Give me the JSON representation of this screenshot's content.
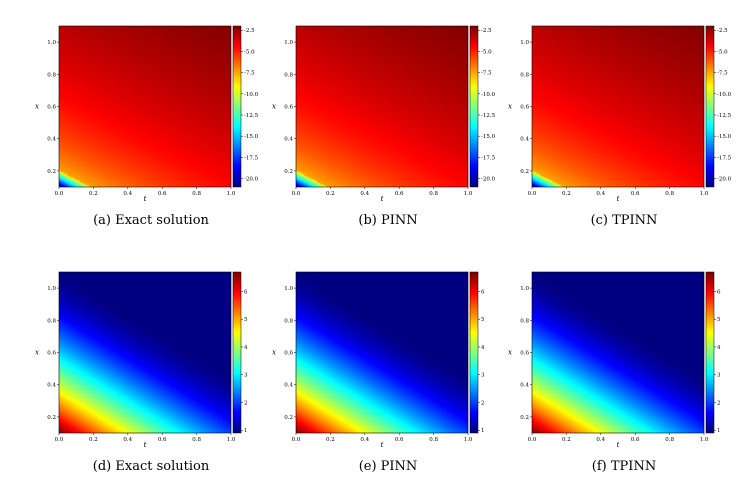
{
  "figure": {
    "panels": [
      {
        "id": "a",
        "row": "top",
        "caption": "(a)  Exact solution"
      },
      {
        "id": "b",
        "row": "top",
        "caption": "(b)  PINN"
      },
      {
        "id": "c",
        "row": "top",
        "caption": "(c)  TPINN"
      },
      {
        "id": "d",
        "row": "bottom",
        "caption": "(d)  Exact solution"
      },
      {
        "id": "e",
        "row": "bottom",
        "caption": "(e)  PINN"
      },
      {
        "id": "f",
        "row": "bottom",
        "caption": "(f)  TPINN"
      }
    ]
  },
  "chart_data": [
    {
      "type": "heatmap",
      "panel": "(a)",
      "title": "(a)  Exact solution",
      "xlabel": "t",
      "ylabel": "x",
      "xlim": [
        0.0,
        1.0
      ],
      "ylim": [
        0.1,
        1.1
      ],
      "xticks": [
        "0.0",
        "0.2",
        "0.4",
        "0.6",
        "0.8",
        "1.0"
      ],
      "yticks": [
        "0.2",
        "0.4",
        "0.6",
        "0.8",
        "1.0"
      ],
      "colormap": "jet",
      "colorbar": {
        "range": [
          -21,
          -2
        ],
        "ticks": [
          "-2.5",
          "-5.0",
          "-7.5",
          "-10.0",
          "-12.5",
          "-15.0",
          "-17.5",
          "-20.0"
        ]
      }
    },
    {
      "type": "heatmap",
      "panel": "(b)",
      "title": "(b)  PINN",
      "xlabel": "t",
      "ylabel": "x",
      "xlim": [
        0.0,
        1.0
      ],
      "ylim": [
        0.1,
        1.1
      ],
      "xticks": [
        "0.0",
        "0.2",
        "0.4",
        "0.6",
        "0.8",
        "1.0"
      ],
      "yticks": [
        "0.2",
        "0.4",
        "0.6",
        "0.8",
        "1.0"
      ],
      "colormap": "jet",
      "colorbar": {
        "range": [
          -21,
          -2
        ],
        "ticks": [
          "-2.5",
          "-5.0",
          "-7.5",
          "-10.0",
          "-12.5",
          "-15.0",
          "-17.5",
          "-20.0"
        ]
      }
    },
    {
      "type": "heatmap",
      "panel": "(c)",
      "title": "(c)  TPINN",
      "xlabel": "t",
      "ylabel": "x",
      "xlim": [
        0.0,
        1.0
      ],
      "ylim": [
        0.1,
        1.1
      ],
      "xticks": [
        "0.0",
        "0.2",
        "0.4",
        "0.6",
        "0.8",
        "1.0"
      ],
      "yticks": [
        "0.2",
        "0.4",
        "0.6",
        "0.8",
        "1.0"
      ],
      "colormap": "jet",
      "colorbar": {
        "range": [
          -21,
          -2
        ],
        "ticks": [
          "-2.5",
          "-5.0",
          "-7.5",
          "-10.0",
          "-12.5",
          "-15.0",
          "-17.5",
          "-20.0"
        ]
      }
    },
    {
      "type": "heatmap",
      "panel": "(d)",
      "title": "(d)  Exact solution",
      "xlabel": "t",
      "ylabel": "x",
      "xlim": [
        0.0,
        1.0
      ],
      "ylim": [
        0.1,
        1.1
      ],
      "xticks": [
        "0.0",
        "0.2",
        "0.4",
        "0.6",
        "0.8",
        "1.0"
      ],
      "yticks": [
        "0.2",
        "0.4",
        "0.6",
        "0.8",
        "1.0"
      ],
      "colormap": "jet",
      "colorbar": {
        "range": [
          0.9,
          6.7
        ],
        "ticks": [
          "6",
          "5",
          "4",
          "3",
          "2",
          "1"
        ]
      }
    },
    {
      "type": "heatmap",
      "panel": "(e)",
      "title": "(e)  PINN",
      "xlabel": "t",
      "ylabel": "x",
      "xlim": [
        0.0,
        1.0
      ],
      "ylim": [
        0.1,
        1.1
      ],
      "xticks": [
        "0.0",
        "0.2",
        "0.4",
        "0.6",
        "0.8",
        "1.0"
      ],
      "yticks": [
        "0.2",
        "0.4",
        "0.6",
        "0.8",
        "1.0"
      ],
      "colormap": "jet",
      "colorbar": {
        "range": [
          0.9,
          6.7
        ],
        "ticks": [
          "6",
          "5",
          "4",
          "3",
          "2",
          "1"
        ]
      }
    },
    {
      "type": "heatmap",
      "panel": "(f)",
      "title": "(f)  TPINN",
      "xlabel": "t",
      "ylabel": "x",
      "xlim": [
        0.0,
        1.0
      ],
      "ylim": [
        0.1,
        1.1
      ],
      "xticks": [
        "0.0",
        "0.2",
        "0.4",
        "0.6",
        "0.8",
        "1.0"
      ],
      "yticks": [
        "0.2",
        "0.4",
        "0.6",
        "0.8",
        "1.0"
      ],
      "colormap": "jet",
      "colorbar": {
        "range": [
          0.9,
          6.7
        ],
        "ticks": [
          "6",
          "5",
          "4",
          "3",
          "2",
          "1"
        ]
      }
    }
  ]
}
